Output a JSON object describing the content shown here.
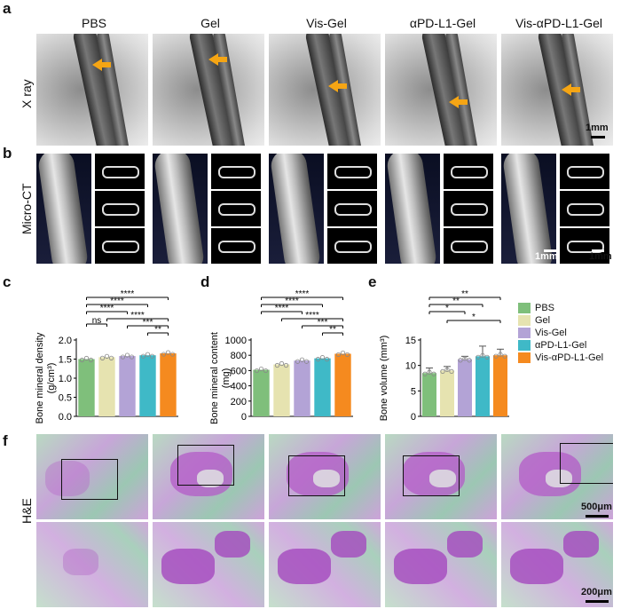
{
  "panels": {
    "a": "a",
    "b": "b",
    "c": "c",
    "d": "d",
    "e": "e",
    "f": "f"
  },
  "groups": [
    "PBS",
    "Gel",
    "Vis-Gel",
    "αPD-L1-Gel",
    "Vis-αPD-L1-Gel"
  ],
  "colors": [
    "#7fbf7b",
    "#e6e3b0",
    "#b3a3d6",
    "#3fb9c7",
    "#f58a1f"
  ],
  "row_labels": {
    "xray": "X ray",
    "microct": "Micro-CT",
    "he": "H&E"
  },
  "scales": {
    "xray": "1mm",
    "microct1": "1mm",
    "microct2": "1mm",
    "he_top": "500μm",
    "he_bottom": "200μm"
  },
  "legend": [
    "PBS",
    "Gel",
    "Vis-Gel",
    "αPD-L1-Gel",
    "Vis-αPD-L1-Gel"
  ],
  "chart_data": [
    {
      "type": "bar",
      "ylabel_line1": "Bone mineral density",
      "ylabel_line2": "(g/cm³)",
      "ylim": [
        0,
        2.0
      ],
      "yticks": [
        "0.0",
        "0.5",
        "1.0",
        "1.5",
        "2.0"
      ],
      "categories": [
        "PBS",
        "Gel",
        "Vis-Gel",
        "αPD-L1-Gel",
        "Vis-αPD-L1-Gel"
      ],
      "values": [
        1.5,
        1.55,
        1.58,
        1.6,
        1.65
      ],
      "sig": [
        {
          "from": 0,
          "to": 4,
          "label": "****"
        },
        {
          "from": 0,
          "to": 3,
          "label": "****"
        },
        {
          "from": 0,
          "to": 2,
          "label": "****"
        },
        {
          "from": 1,
          "to": 4,
          "label": "****"
        },
        {
          "from": 2,
          "to": 4,
          "label": "***"
        },
        {
          "from": 3,
          "to": 4,
          "label": "**"
        },
        {
          "from": 0,
          "to": 1,
          "label": "ns"
        }
      ]
    },
    {
      "type": "bar",
      "ylabel_line1": "Bone mineral content",
      "ylabel_line2": "(mg)",
      "ylim": [
        0,
        1000
      ],
      "yticks": [
        "0",
        "200",
        "400",
        "600",
        "800",
        "1000"
      ],
      "categories": [
        "PBS",
        "Gel",
        "Vis-Gel",
        "αPD-L1-Gel",
        "Vis-αPD-L1-Gel"
      ],
      "values": [
        610,
        680,
        730,
        760,
        820
      ],
      "sig": [
        {
          "from": 0,
          "to": 4,
          "label": "****"
        },
        {
          "from": 0,
          "to": 3,
          "label": "****"
        },
        {
          "from": 0,
          "to": 2,
          "label": "****"
        },
        {
          "from": 1,
          "to": 4,
          "label": "****"
        },
        {
          "from": 2,
          "to": 4,
          "label": "***"
        },
        {
          "from": 3,
          "to": 4,
          "label": "**"
        }
      ]
    },
    {
      "type": "bar",
      "ylabel_line1": "Bone volume (mm³)",
      "ylabel_line2": "",
      "ylim": [
        0,
        15
      ],
      "yticks": [
        "0",
        "5",
        "10",
        "15"
      ],
      "categories": [
        "PBS",
        "Gel",
        "Vis-Gel",
        "αPD-L1-Gel",
        "Vis-αPD-L1-Gel"
      ],
      "values": [
        8.5,
        9.0,
        11.2,
        11.8,
        12.0
      ],
      "errors": [
        1.0,
        0.8,
        0.6,
        2.0,
        1.2
      ],
      "sig": [
        {
          "from": 0,
          "to": 4,
          "label": "**"
        },
        {
          "from": 0,
          "to": 3,
          "label": "**"
        },
        {
          "from": 0,
          "to": 2,
          "label": "*"
        },
        {
          "from": 1,
          "to": 4,
          "label": "*"
        }
      ]
    }
  ]
}
